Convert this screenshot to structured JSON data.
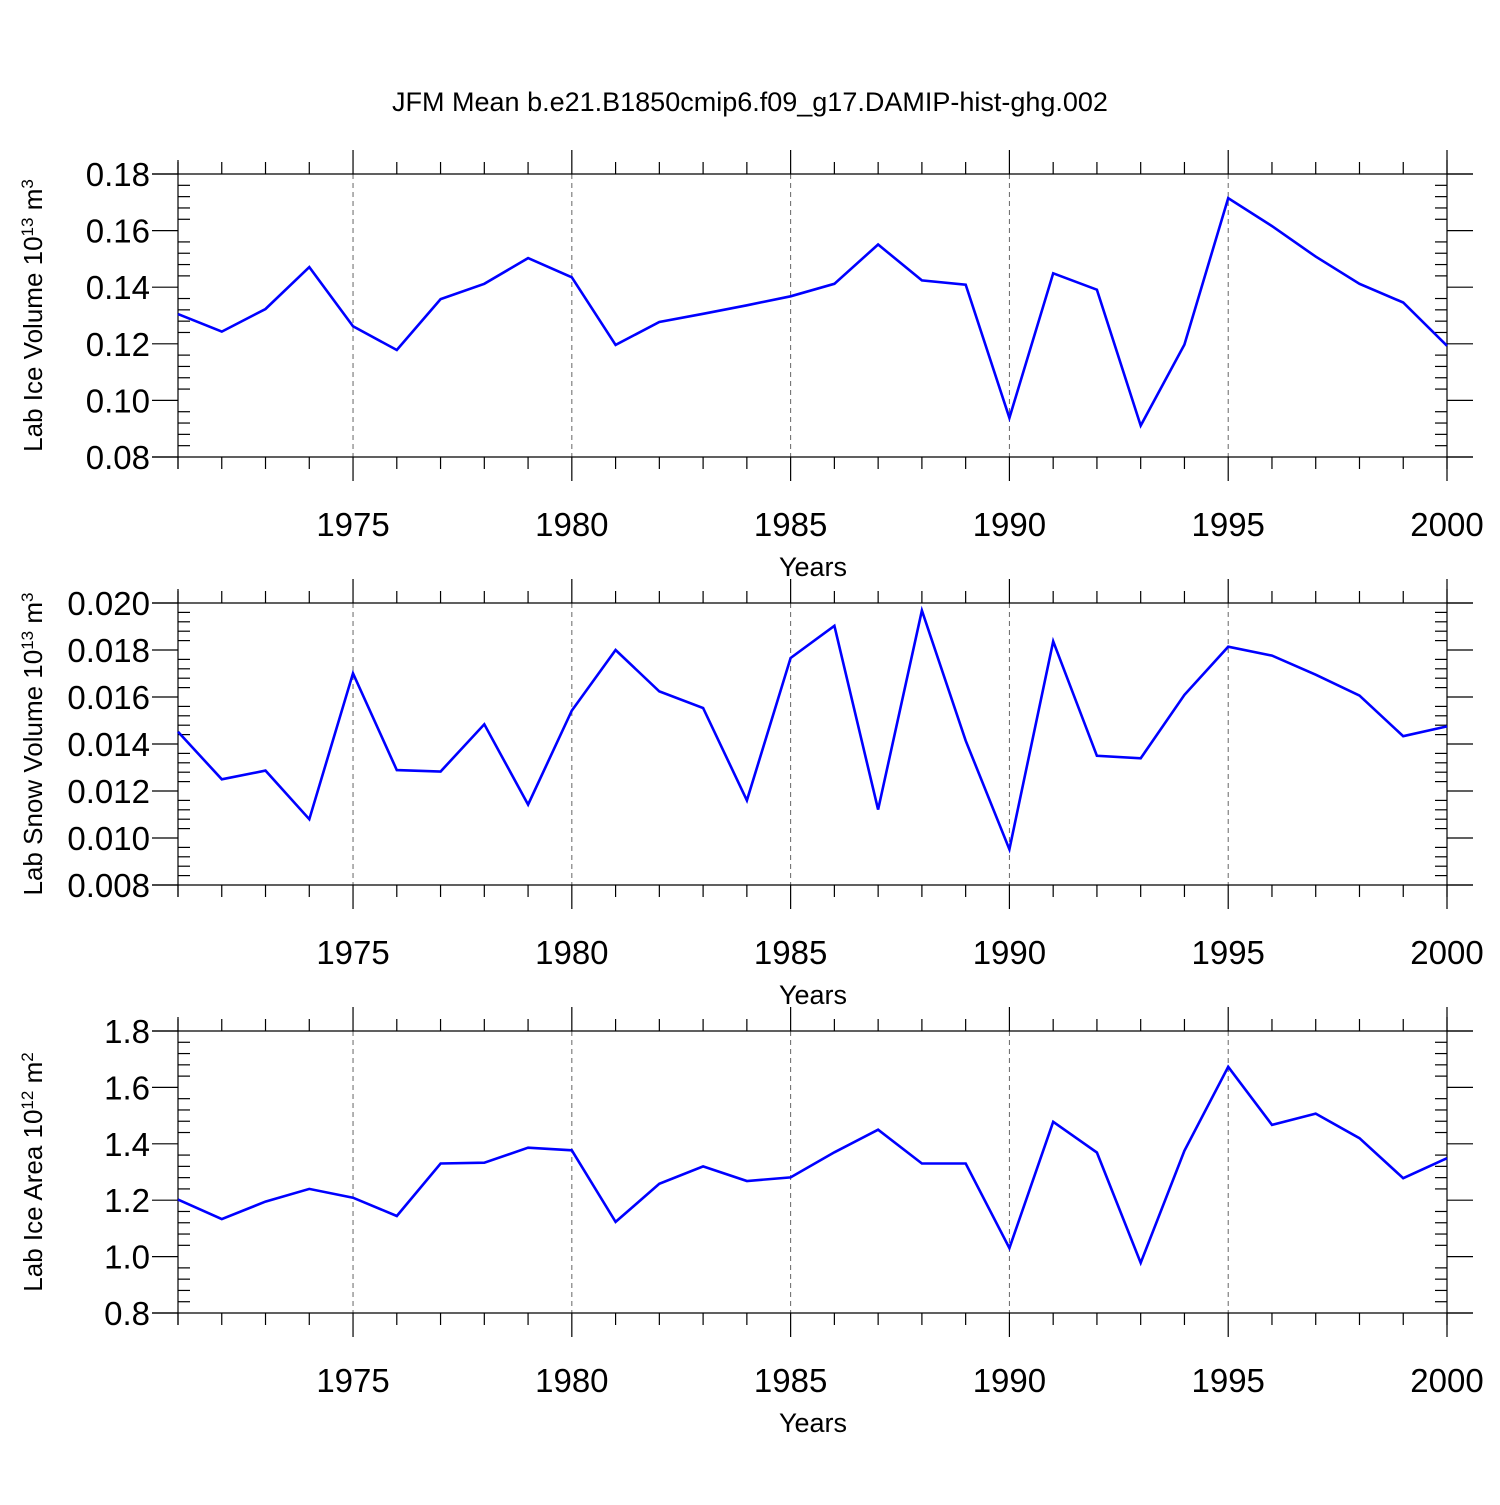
{
  "chart_data": {
    "title": "JFM Mean b.e21.B1850cmip6.f09_g17.DAMIP-hist-ghg.002",
    "panels": [
      {
        "type": "line",
        "ylabel": "Lab Ice Volume",
        "ylabel_base": "10",
        "ylabel_exp": "13",
        "ylabel_unit": "m",
        "ylabel_unit_exp": "3",
        "xlabel": "Years",
        "xlim": [
          1971,
          2000
        ],
        "ylim": [
          0.08,
          0.18
        ],
        "x_ticks": [
          "1975",
          "1980",
          "1985",
          "1990",
          "1995",
          "2000"
        ],
        "y_ticks": [
          "0.08",
          "0.10",
          "0.12",
          "0.14",
          "0.16",
          "0.18"
        ],
        "x": [
          1971,
          1972,
          1973,
          1974,
          1975,
          1976,
          1977,
          1978,
          1979,
          1980,
          1981,
          1982,
          1983,
          1984,
          1985,
          1986,
          1987,
          1988,
          1989,
          1990,
          1991,
          1992,
          1993,
          1994,
          1995,
          1996,
          1997,
          1998,
          1999,
          2000
        ],
        "series": [
          {
            "name": "Lab Ice Volume",
            "color": "#0000ff",
            "values": [
              0.1305,
              0.1243,
              0.1323,
              0.1471,
              0.1262,
              0.1178,
              0.1358,
              0.1412,
              0.1503,
              0.1435,
              0.1196,
              0.1277,
              0.1306,
              0.1336,
              0.1368,
              0.1412,
              0.1551,
              0.1424,
              0.1409,
              0.0938,
              0.1449,
              0.1391,
              0.0911,
              0.1197,
              0.1715,
              0.1616,
              0.1508,
              0.1412,
              0.1346,
              0.1193
            ]
          }
        ]
      },
      {
        "type": "line",
        "ylabel": "Lab Snow Volume",
        "ylabel_base": "10",
        "ylabel_exp": "13",
        "ylabel_unit": "m",
        "ylabel_unit_exp": "3",
        "xlabel": "Years",
        "xlim": [
          1971,
          2000
        ],
        "ylim": [
          0.008,
          0.02
        ],
        "x_ticks": [
          "1975",
          "1980",
          "1985",
          "1990",
          "1995",
          "2000"
        ],
        "y_ticks": [
          "0.008",
          "0.010",
          "0.012",
          "0.014",
          "0.016",
          "0.018",
          "0.020"
        ],
        "x": [
          1971,
          1972,
          1973,
          1974,
          1975,
          1976,
          1977,
          1978,
          1979,
          1980,
          1981,
          1982,
          1983,
          1984,
          1985,
          1986,
          1987,
          1988,
          1989,
          1990,
          1991,
          1992,
          1993,
          1994,
          1995,
          1996,
          1997,
          1998,
          1999,
          2000
        ],
        "series": [
          {
            "name": "Lab Snow Volume",
            "color": "#0000ff",
            "values": [
              0.01452,
              0.0125,
              0.01287,
              0.0108,
              0.01701,
              0.01289,
              0.01283,
              0.01484,
              0.01142,
              0.01542,
              0.018,
              0.01624,
              0.01553,
              0.0116,
              0.01766,
              0.01903,
              0.01121,
              0.01968,
              0.01414,
              0.00952,
              0.01837,
              0.0135,
              0.01339,
              0.01609,
              0.01814,
              0.01776,
              0.01695,
              0.01606,
              0.01433,
              0.01475
            ]
          }
        ]
      },
      {
        "type": "line",
        "ylabel": "Lab Ice Area",
        "ylabel_base": "10",
        "ylabel_exp": "12",
        "ylabel_unit": "m",
        "ylabel_unit_exp": "2",
        "xlabel": "Years",
        "xlim": [
          1971,
          2000
        ],
        "ylim": [
          0.8,
          1.8
        ],
        "x_ticks": [
          "1975",
          "1980",
          "1985",
          "1990",
          "1995",
          "2000"
        ],
        "y_ticks": [
          "0.8",
          "1.0",
          "1.2",
          "1.4",
          "1.6",
          "1.8"
        ],
        "x": [
          1971,
          1972,
          1973,
          1974,
          1975,
          1976,
          1977,
          1978,
          1979,
          1980,
          1981,
          1982,
          1983,
          1984,
          1985,
          1986,
          1987,
          1988,
          1989,
          1990,
          1991,
          1992,
          1993,
          1994,
          1995,
          1996,
          1997,
          1998,
          1999,
          2000
        ],
        "series": [
          {
            "name": "Lab Ice Area",
            "color": "#0000ff",
            "values": [
              1.202,
              1.133,
              1.195,
              1.24,
              1.209,
              1.144,
              1.33,
              1.333,
              1.386,
              1.377,
              1.123,
              1.258,
              1.32,
              1.268,
              1.281,
              1.37,
              1.45,
              1.33,
              1.33,
              1.03,
              1.478,
              1.369,
              0.978,
              1.375,
              1.673,
              1.467,
              1.507,
              1.42,
              1.278,
              1.349
            ]
          }
        ]
      }
    ]
  }
}
